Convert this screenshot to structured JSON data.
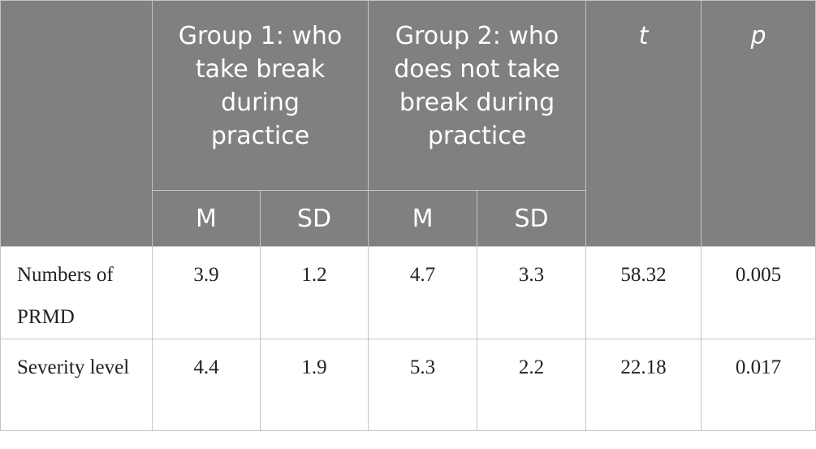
{
  "header": {
    "blank": "",
    "group1": "Group 1: who take break during practice",
    "group2": "Group 2: who does not take break during practice",
    "t": "t",
    "p": "p",
    "m1": "M",
    "sd1": "SD",
    "m2": "M",
    "sd2": "SD"
  },
  "rows": [
    {
      "label": "Numbers of PRMD",
      "g1_m": "3.9",
      "g1_sd": "1.2",
      "g2_m": "4.7",
      "g2_sd": "3.3",
      "t": "58.32",
      "p": "0.005"
    },
    {
      "label": "Severity level",
      "g1_m": "4.4",
      "g1_sd": "1.9",
      "g2_m": "5.3",
      "g2_sd": "2.2",
      "t": "22.18",
      "p": "0.017"
    }
  ]
}
